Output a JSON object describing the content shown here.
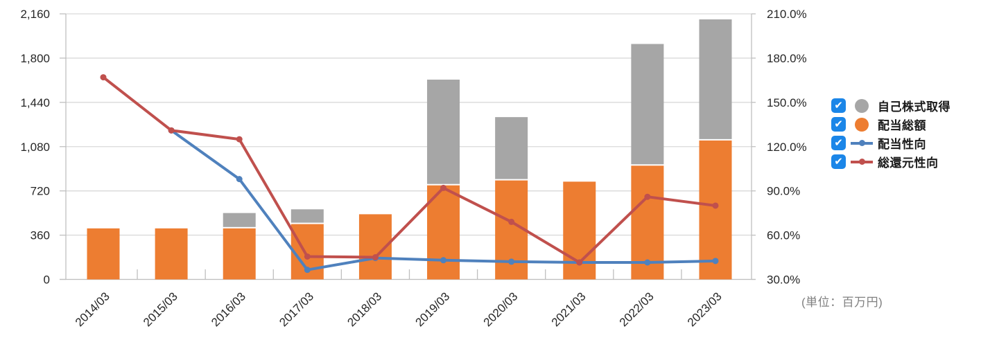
{
  "note": "(単位：百万円)",
  "legend": {
    "checkbox_color": "#1B86E8",
    "items": [
      {
        "label": "自己株式取得",
        "type": "circle",
        "color": "#A6A6A6",
        "checked": true
      },
      {
        "label": "配当総額",
        "type": "circle",
        "color": "#ED7D31",
        "checked": true
      },
      {
        "label": "配当性向",
        "type": "line",
        "color": "#4F81BD",
        "checked": true
      },
      {
        "label": "総還元性向",
        "type": "line",
        "color": "#C0504D",
        "checked": true
      }
    ]
  },
  "chart_data": {
    "type": "combo-stacked-bar-line",
    "title": "",
    "unit_note": "(単位：百万円)",
    "categories": [
      "2014/03",
      "2015/03",
      "2016/03",
      "2017/03",
      "2018/03",
      "2019/03",
      "2020/03",
      "2021/03",
      "2022/03",
      "2023/03"
    ],
    "bar_series": [
      {
        "name": "配当総額",
        "color": "#ED7D31",
        "axis": "left",
        "stack_order": 0,
        "values": [
          415,
          415,
          415,
          450,
          530,
          765,
          805,
          795,
          925,
          1130
        ]
      },
      {
        "name": "自己株式取得",
        "color": "#A6A6A6",
        "axis": "left",
        "stack_order": 1,
        "values": [
          0,
          0,
          125,
          120,
          0,
          860,
          515,
          0,
          990,
          985
        ]
      }
    ],
    "line_series": [
      {
        "name": "配当性向",
        "color": "#4F81BD",
        "axis": "right",
        "values": [
          null,
          131,
          98,
          36.5,
          44.5,
          43,
          42,
          41.5,
          41.5,
          42.5
        ]
      },
      {
        "name": "総還元性向",
        "color": "#C0504D",
        "axis": "right",
        "values": [
          167,
          131,
          125,
          45.5,
          45,
          92,
          69,
          41.5,
          86,
          80
        ]
      }
    ],
    "left_axis": {
      "min": 0,
      "max": 2160,
      "step": 360,
      "tick_labels": [
        "0",
        "360",
        "720",
        "1,080",
        "1,440",
        "1,800",
        "2,160"
      ]
    },
    "right_axis": {
      "min": 30,
      "max": 210,
      "step": 30,
      "unit": "%",
      "tick_labels": [
        "30.0%",
        "60.0%",
        "90.0%",
        "120.0%",
        "150.0%",
        "180.0%",
        "210.0%"
      ]
    },
    "grid": true,
    "legend_position": "right"
  },
  "colors": {
    "grid": "#D9D9D9",
    "axis": "#BFBFBF",
    "axis_text": "#262626",
    "note_text": "#808080"
  }
}
